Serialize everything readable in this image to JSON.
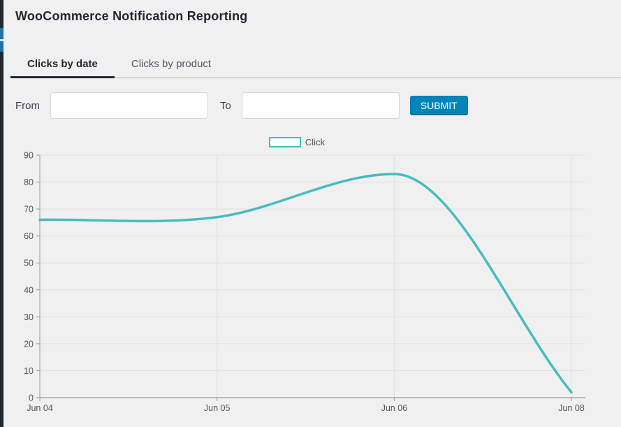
{
  "page": {
    "title": "WooCommerce Notification Reporting"
  },
  "tabs": [
    {
      "label": "Clicks by date",
      "active": true
    },
    {
      "label": "Clicks by product",
      "active": false
    }
  ],
  "filters": {
    "from_label": "From",
    "from_value": "",
    "to_label": "To",
    "to_value": "",
    "submit_label": "SUBMIT"
  },
  "legend": {
    "label": "Click"
  },
  "colors": {
    "accent_teal": "#47bcbd",
    "legend_fill": "#bfe5e5",
    "submit_bg": "#0085ba",
    "submit_border": "#0073aa",
    "submit_shadow": "#006799",
    "active_menu_blue": "#2173a6",
    "gridline": "#dfdfdf",
    "axis_line": "#989898",
    "tick_text": "#545454"
  },
  "chart_data": {
    "type": "line",
    "categories": [
      "Jun 04",
      "Jun 05",
      "Jun 06",
      "Jun 08"
    ],
    "series": [
      {
        "name": "Click",
        "color": "#47bcbd",
        "values": [
          66,
          67,
          83,
          2
        ]
      }
    ],
    "title": "",
    "xlabel": "",
    "ylabel": "",
    "ylim": [
      0,
      90
    ],
    "ytick_step": 10,
    "grid": true,
    "legend_position": "top-center"
  }
}
